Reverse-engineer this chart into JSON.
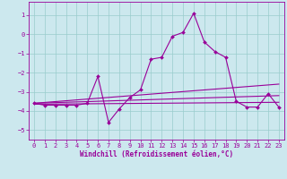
{
  "xlabel": "Windchill (Refroidissement éolien,°C)",
  "bg_color": "#cce8ee",
  "line_color": "#990099",
  "grid_color": "#99cccc",
  "x_hours": [
    0,
    1,
    2,
    3,
    4,
    5,
    6,
    7,
    8,
    9,
    10,
    11,
    12,
    13,
    14,
    15,
    16,
    17,
    18,
    19,
    20,
    21,
    22,
    23
  ],
  "windchill": [
    -3.6,
    -3.7,
    -3.7,
    -3.7,
    -3.7,
    -3.6,
    -2.2,
    -4.6,
    -3.9,
    -3.3,
    -2.9,
    -1.3,
    -1.2,
    -0.1,
    0.1,
    1.1,
    -0.4,
    -0.9,
    -1.2,
    -3.5,
    -3.8,
    -3.8,
    -3.1,
    -3.8
  ],
  "trend1_x": [
    0,
    23
  ],
  "trend1_y": [
    -3.6,
    -2.6
  ],
  "trend2_x": [
    0,
    23
  ],
  "trend2_y": [
    -3.65,
    -3.55
  ],
  "trend3_x": [
    0,
    23
  ],
  "trend3_y": [
    -3.6,
    -3.2
  ],
  "ylim": [
    -5.5,
    1.7
  ],
  "xlim": [
    -0.5,
    23.5
  ],
  "yticks": [
    1,
    0,
    -1,
    -2,
    -3,
    -4,
    -5
  ],
  "xticks": [
    0,
    1,
    2,
    3,
    4,
    5,
    6,
    7,
    8,
    9,
    10,
    11,
    12,
    13,
    14,
    15,
    16,
    17,
    18,
    19,
    20,
    21,
    22,
    23
  ],
  "tick_fontsize": 5,
  "xlabel_fontsize": 5.5,
  "marker_size": 2.0,
  "line_width": 0.8
}
